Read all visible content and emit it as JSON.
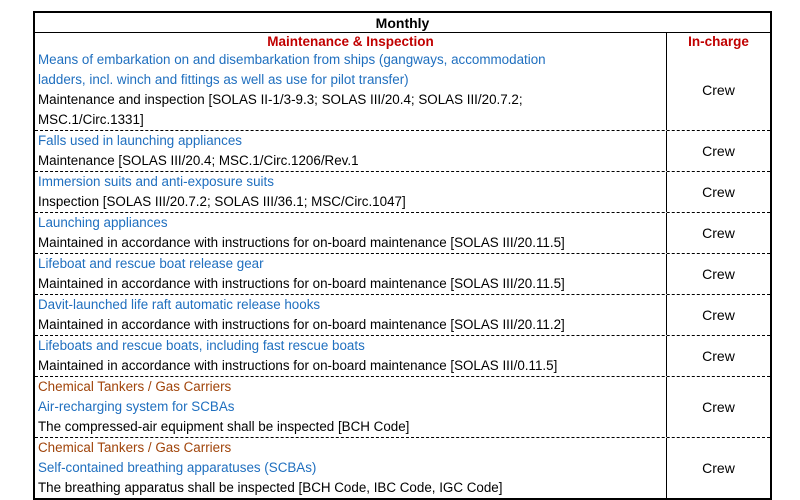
{
  "table": {
    "title": "Monthly",
    "col_main": "Maintenance & Inspection",
    "col_side": "In-charge",
    "rows": [
      {
        "category": "",
        "heading_lines": [
          "Means of embarkation on and disembarkation from ships (gangways, accommodation",
          "ladders, incl. winch and fittings as well as use for pilot transfer)"
        ],
        "detail_lines": [
          "Maintenance and inspection [SOLAS II-1/3-9.3; SOLAS III/20.4; SOLAS III/20.7.2;",
          "MSC.1/Circ.1331]"
        ],
        "in_charge": "Crew"
      },
      {
        "category": "",
        "heading_lines": [
          "Falls used in launching appliances"
        ],
        "detail_lines": [
          "Maintenance [SOLAS III/20.4; MSC.1/Circ.1206/Rev.1"
        ],
        "in_charge": "Crew"
      },
      {
        "category": "",
        "heading_lines": [
          "Immersion suits and anti-exposure suits"
        ],
        "detail_lines": [
          "Inspection [SOLAS III/20.7.2; SOLAS III/36.1; MSC/Circ.1047]"
        ],
        "in_charge": "Crew"
      },
      {
        "category": "",
        "heading_lines": [
          "Launching appliances"
        ],
        "detail_lines": [
          "Maintained in accordance with instructions for on-board maintenance [SOLAS III/20.11.5]"
        ],
        "in_charge": "Crew"
      },
      {
        "category": "",
        "heading_lines": [
          "Lifeboat and rescue boat release gear"
        ],
        "detail_lines": [
          "Maintained in accordance with instructions for on-board maintenance [SOLAS III/20.11.5]"
        ],
        "in_charge": "Crew"
      },
      {
        "category": "",
        "heading_lines": [
          "Davit-launched life raft automatic release hooks"
        ],
        "detail_lines": [
          "Maintained in accordance with instructions for on-board maintenance [SOLAS III/20.11.2]"
        ],
        "in_charge": "Crew"
      },
      {
        "category": "",
        "heading_lines": [
          "Lifeboats and rescue boats, including fast rescue boats"
        ],
        "detail_lines": [
          "Maintained in accordance with instructions for on-board maintenance [SOLAS III/0.11.5]"
        ],
        "in_charge": "Crew"
      },
      {
        "category": "Chemical Tankers / Gas Carriers",
        "heading_lines": [
          "Air-recharging system for SCBAs"
        ],
        "detail_lines": [
          "The compressed-air equipment shall be inspected [BCH Code]"
        ],
        "in_charge": "Crew"
      },
      {
        "category": "Chemical Tankers / Gas Carriers",
        "heading_lines": [
          "Self-contained breathing apparatuses (SCBAs)"
        ],
        "detail_lines": [
          "The breathing apparatus shall be inspected [BCH Code, IBC Code, IGC Code]"
        ],
        "in_charge": "Crew"
      }
    ]
  }
}
